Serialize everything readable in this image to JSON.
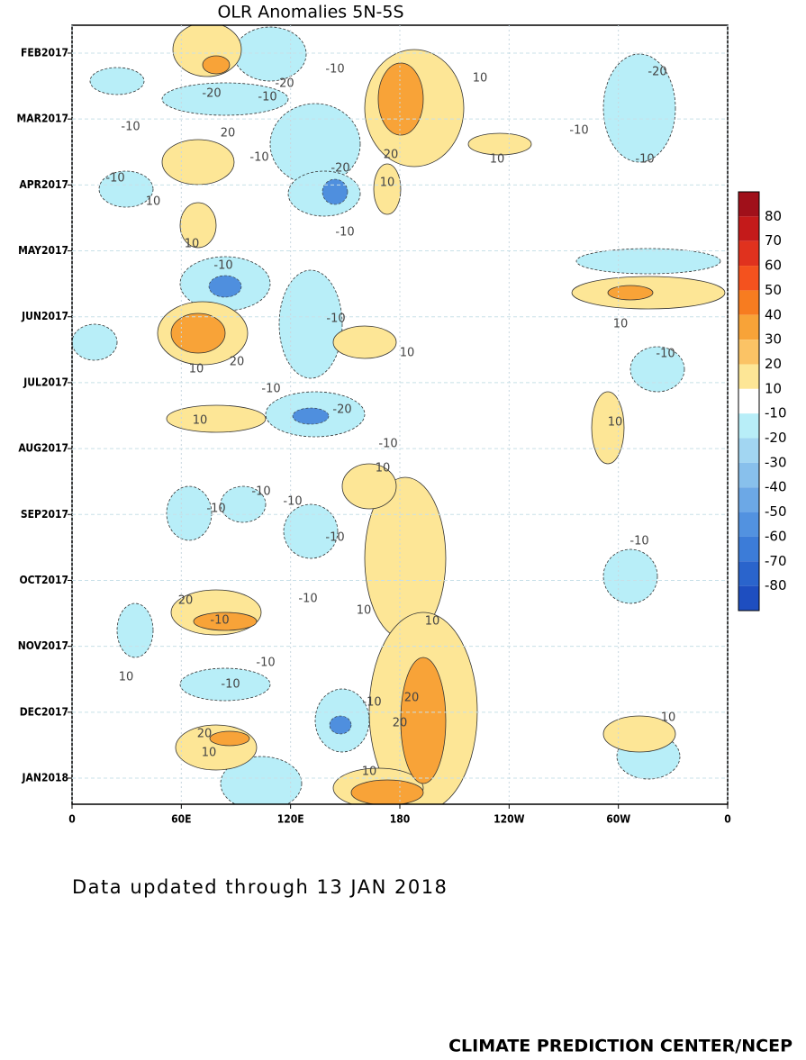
{
  "chart_data": {
    "type": "hovmoller",
    "title": "OLR Anomalies 5N-5S",
    "xlim": [
      0,
      360
    ],
    "xticks": [
      0,
      {
        "value": 60,
        "label": "60E"
      },
      {
        "value": 120,
        "label": "120E"
      },
      180,
      {
        "value": 240,
        "label": "120W"
      },
      {
        "value": 300,
        "label": "60W"
      },
      {
        "value": 360,
        "label": "0"
      }
    ],
    "yticks": [
      "FEB2017",
      "MAR2017",
      "APR2017",
      "MAY2017",
      "JUN2017",
      "JUL2017",
      "AUG2017",
      "SEP2017",
      "OCT2017",
      "NOV2017",
      "DEC2017",
      "JAN2018"
    ],
    "colorbar": {
      "levels": [
        80,
        70,
        60,
        50,
        40,
        30,
        20,
        10,
        -10,
        -20,
        -30,
        -40,
        -50,
        -60,
        -70,
        -80
      ],
      "colors": [
        "#a0101a",
        "#c41a1a",
        "#e0321e",
        "#f4521e",
        "#f77c20",
        "#f8a338",
        "#fbc365",
        "#fde696",
        "#ffffff",
        "#b8eef8",
        "#a2d6f2",
        "#88c0ec",
        "#6ca8e6",
        "#5292e0",
        "#3c7cd8",
        "#2a64cc",
        "#1e4ec0"
      ]
    },
    "contour_labels": [
      -10,
      -20,
      -20,
      -10,
      10,
      -20,
      -10,
      20,
      -10,
      20,
      10,
      -10,
      -20,
      -10,
      -10,
      10,
      10,
      -10,
      10,
      -10,
      10,
      -10,
      20,
      10,
      10,
      -10,
      -10,
      -20,
      10,
      10,
      -10,
      10,
      -10,
      -10,
      -10,
      -10,
      -10,
      20,
      10,
      10,
      -10,
      -10,
      -10,
      10,
      -10,
      -10,
      20,
      20,
      10,
      20,
      10,
      10
    ],
    "note": "Data updated through 13 JAN 2018",
    "credit": "CLIMATE PREDICTION CENTER/NCEP"
  }
}
